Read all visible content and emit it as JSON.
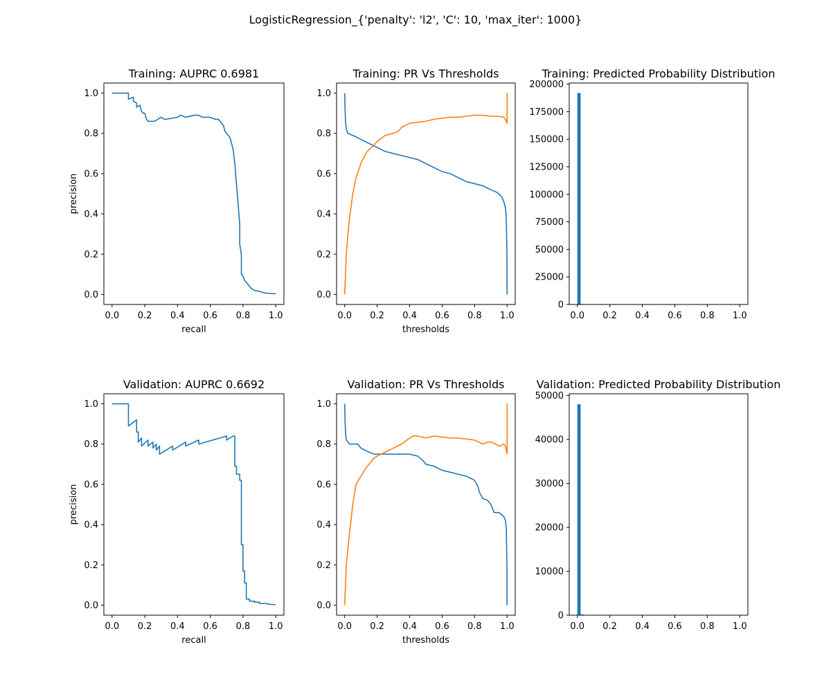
{
  "figure": {
    "suptitle": "LogisticRegression_{'penalty': 'l2', 'C': 10, 'max_iter': 1000}"
  },
  "colors": {
    "blue": "#1f77b4",
    "orange": "#ff7f0e"
  },
  "chart_data": [
    {
      "type": "line",
      "title": "Training: AUPRC 0.6981",
      "xlabel": "recall",
      "ylabel": "precision",
      "xlim": [
        -0.05,
        1.05
      ],
      "ylim": [
        -0.05,
        1.05
      ],
      "xticks": [
        0.0,
        0.2,
        0.4,
        0.6,
        0.8,
        1.0
      ],
      "yticks": [
        0.0,
        0.2,
        0.4,
        0.6,
        0.8,
        1.0
      ],
      "series": [
        {
          "color": "#1f77b4",
          "x": [
            0,
            0.1,
            0.1,
            0.13,
            0.13,
            0.15,
            0.15,
            0.17,
            0.18,
            0.19,
            0.2,
            0.21,
            0.22,
            0.24,
            0.26,
            0.3,
            0.32,
            0.33,
            0.4,
            0.42,
            0.45,
            0.5,
            0.53,
            0.55,
            0.6,
            0.63,
            0.65,
            0.66,
            0.68,
            0.69,
            0.7,
            0.72,
            0.73,
            0.74,
            0.75,
            0.76,
            0.77,
            0.78,
            0.78,
            0.79,
            0.79,
            0.8,
            0.81,
            0.82,
            0.84,
            0.85,
            0.87,
            0.9,
            0.93,
            0.96,
            1.0
          ],
          "y": [
            1.0,
            1.0,
            0.97,
            0.98,
            0.96,
            0.95,
            0.93,
            0.94,
            0.91,
            0.9,
            0.9,
            0.87,
            0.86,
            0.86,
            0.86,
            0.88,
            0.87,
            0.87,
            0.88,
            0.89,
            0.88,
            0.89,
            0.89,
            0.88,
            0.88,
            0.87,
            0.87,
            0.86,
            0.84,
            0.81,
            0.8,
            0.78,
            0.75,
            0.72,
            0.65,
            0.55,
            0.45,
            0.35,
            0.25,
            0.2,
            0.1,
            0.09,
            0.07,
            0.06,
            0.04,
            0.03,
            0.02,
            0.015,
            0.008,
            0.005,
            0.003
          ]
        }
      ]
    },
    {
      "type": "line",
      "title": "Training: PR Vs Thresholds",
      "xlabel": "thresholds",
      "ylabel": "",
      "xlim": [
        -0.05,
        1.05
      ],
      "ylim": [
        -0.05,
        1.05
      ],
      "xticks": [
        0.0,
        0.2,
        0.4,
        0.6,
        0.8,
        1.0
      ],
      "yticks": [
        0.0,
        0.2,
        0.4,
        0.6,
        0.8,
        1.0
      ],
      "series": [
        {
          "color": "#1f77b4",
          "x": [
            0.0,
            0.003,
            0.006,
            0.01,
            0.02,
            0.05,
            0.1,
            0.15,
            0.2,
            0.25,
            0.3,
            0.35,
            0.4,
            0.45,
            0.5,
            0.55,
            0.6,
            0.65,
            0.7,
            0.75,
            0.8,
            0.85,
            0.9,
            0.93,
            0.95,
            0.97,
            0.98,
            0.99,
            0.995,
            0.999,
            1.0
          ],
          "y": [
            1.0,
            0.9,
            0.85,
            0.82,
            0.8,
            0.79,
            0.77,
            0.75,
            0.73,
            0.71,
            0.7,
            0.69,
            0.68,
            0.67,
            0.65,
            0.63,
            0.61,
            0.6,
            0.58,
            0.56,
            0.55,
            0.54,
            0.52,
            0.51,
            0.5,
            0.48,
            0.46,
            0.43,
            0.38,
            0.2,
            0.0
          ]
        },
        {
          "color": "#ff7f0e",
          "x": [
            0.0,
            0.005,
            0.01,
            0.02,
            0.03,
            0.05,
            0.07,
            0.1,
            0.13,
            0.15,
            0.18,
            0.2,
            0.25,
            0.3,
            0.33,
            0.35,
            0.4,
            0.45,
            0.5,
            0.55,
            0.6,
            0.65,
            0.7,
            0.75,
            0.8,
            0.85,
            0.9,
            0.95,
            0.98,
            0.99,
            1.0,
            1.0,
            1.0
          ],
          "y": [
            0.0,
            0.1,
            0.2,
            0.3,
            0.38,
            0.5,
            0.58,
            0.65,
            0.7,
            0.72,
            0.74,
            0.76,
            0.79,
            0.8,
            0.81,
            0.83,
            0.85,
            0.855,
            0.86,
            0.87,
            0.875,
            0.88,
            0.88,
            0.885,
            0.89,
            0.89,
            0.885,
            0.885,
            0.88,
            0.87,
            0.85,
            1.0,
            0.88
          ]
        }
      ]
    },
    {
      "type": "bar",
      "title": "Training: Predicted Probability Distribution",
      "xlabel": "",
      "ylabel": "",
      "xlim": [
        -0.05,
        1.05
      ],
      "ylim": [
        0,
        201000
      ],
      "xticks": [
        0.0,
        0.2,
        0.4,
        0.6,
        0.8,
        1.0
      ],
      "yticks": [
        0,
        25000,
        50000,
        75000,
        100000,
        125000,
        150000,
        175000,
        200000
      ],
      "bin_width": 0.02,
      "bins": [
        {
          "x": 0.0,
          "count": 192000
        },
        {
          "x": 0.02,
          "count": 400
        }
      ]
    },
    {
      "type": "line",
      "title": "Validation: AUPRC 0.6692",
      "xlabel": "recall",
      "ylabel": "precision",
      "xlim": [
        -0.05,
        1.05
      ],
      "ylim": [
        -0.05,
        1.05
      ],
      "xticks": [
        0.0,
        0.2,
        0.4,
        0.6,
        0.8,
        1.0
      ],
      "yticks": [
        0.0,
        0.2,
        0.4,
        0.6,
        0.8,
        1.0
      ],
      "series": [
        {
          "color": "#1f77b4",
          "x": [
            0,
            0.1,
            0.1,
            0.15,
            0.15,
            0.16,
            0.16,
            0.18,
            0.18,
            0.22,
            0.22,
            0.25,
            0.25,
            0.27,
            0.27,
            0.29,
            0.29,
            0.37,
            0.37,
            0.45,
            0.45,
            0.53,
            0.53,
            0.7,
            0.7,
            0.74,
            0.75,
            0.75,
            0.76,
            0.76,
            0.78,
            0.78,
            0.79,
            0.79,
            0.8,
            0.8,
            0.81,
            0.81,
            0.82,
            0.82,
            0.84,
            0.84,
            0.87,
            0.87,
            0.9,
            0.9,
            0.95,
            0.95,
            1.0
          ],
          "y": [
            1.0,
            1.0,
            0.89,
            0.92,
            0.86,
            0.86,
            0.81,
            0.83,
            0.79,
            0.82,
            0.79,
            0.81,
            0.78,
            0.8,
            0.77,
            0.79,
            0.75,
            0.79,
            0.77,
            0.81,
            0.79,
            0.82,
            0.8,
            0.84,
            0.82,
            0.84,
            0.84,
            0.69,
            0.69,
            0.65,
            0.65,
            0.62,
            0.62,
            0.3,
            0.3,
            0.17,
            0.17,
            0.11,
            0.11,
            0.03,
            0.03,
            0.02,
            0.02,
            0.015,
            0.015,
            0.008,
            0.008,
            0.005,
            0.002
          ]
        }
      ]
    },
    {
      "type": "line",
      "title": "Validation: PR Vs Thresholds",
      "xlabel": "thresholds",
      "ylabel": "",
      "xlim": [
        -0.05,
        1.05
      ],
      "ylim": [
        -0.05,
        1.05
      ],
      "xticks": [
        0.0,
        0.2,
        0.4,
        0.6,
        0.8,
        1.0
      ],
      "yticks": [
        0.0,
        0.2,
        0.4,
        0.6,
        0.8,
        1.0
      ],
      "series": [
        {
          "color": "#1f77b4",
          "x": [
            0.0,
            0.003,
            0.006,
            0.01,
            0.02,
            0.03,
            0.05,
            0.08,
            0.1,
            0.15,
            0.18,
            0.2,
            0.25,
            0.3,
            0.35,
            0.4,
            0.45,
            0.48,
            0.5,
            0.55,
            0.6,
            0.65,
            0.7,
            0.75,
            0.8,
            0.82,
            0.83,
            0.85,
            0.88,
            0.9,
            0.92,
            0.95,
            0.98,
            0.99,
            0.995,
            0.999,
            1.0
          ],
          "y": [
            1.0,
            0.9,
            0.85,
            0.82,
            0.81,
            0.8,
            0.8,
            0.8,
            0.78,
            0.76,
            0.75,
            0.75,
            0.75,
            0.75,
            0.75,
            0.75,
            0.74,
            0.72,
            0.7,
            0.69,
            0.67,
            0.66,
            0.65,
            0.64,
            0.62,
            0.59,
            0.56,
            0.53,
            0.52,
            0.5,
            0.46,
            0.46,
            0.44,
            0.42,
            0.38,
            0.2,
            0.0
          ]
        },
        {
          "color": "#ff7f0e",
          "x": [
            0.0,
            0.005,
            0.01,
            0.02,
            0.03,
            0.05,
            0.07,
            0.1,
            0.13,
            0.15,
            0.18,
            0.2,
            0.25,
            0.3,
            0.35,
            0.4,
            0.42,
            0.45,
            0.5,
            0.55,
            0.6,
            0.65,
            0.7,
            0.75,
            0.8,
            0.85,
            0.88,
            0.9,
            0.93,
            0.95,
            0.98,
            0.99,
            1.0,
            1.0,
            1.0
          ],
          "y": [
            0.0,
            0.1,
            0.2,
            0.28,
            0.36,
            0.5,
            0.6,
            0.64,
            0.68,
            0.7,
            0.73,
            0.74,
            0.76,
            0.78,
            0.8,
            0.83,
            0.84,
            0.84,
            0.83,
            0.84,
            0.835,
            0.83,
            0.83,
            0.825,
            0.82,
            0.8,
            0.81,
            0.81,
            0.8,
            0.79,
            0.8,
            0.79,
            0.75,
            1.0,
            0.8
          ]
        }
      ]
    },
    {
      "type": "bar",
      "title": "Validation: Predicted Probability Distribution",
      "xlabel": "",
      "ylabel": "",
      "xlim": [
        -0.05,
        1.05
      ],
      "ylim": [
        0,
        50400
      ],
      "xticks": [
        0.0,
        0.2,
        0.4,
        0.6,
        0.8,
        1.0
      ],
      "yticks": [
        0,
        10000,
        20000,
        30000,
        40000,
        50000
      ],
      "bin_width": 0.02,
      "bins": [
        {
          "x": 0.0,
          "count": 48000
        },
        {
          "x": 0.02,
          "count": 150
        }
      ]
    }
  ]
}
